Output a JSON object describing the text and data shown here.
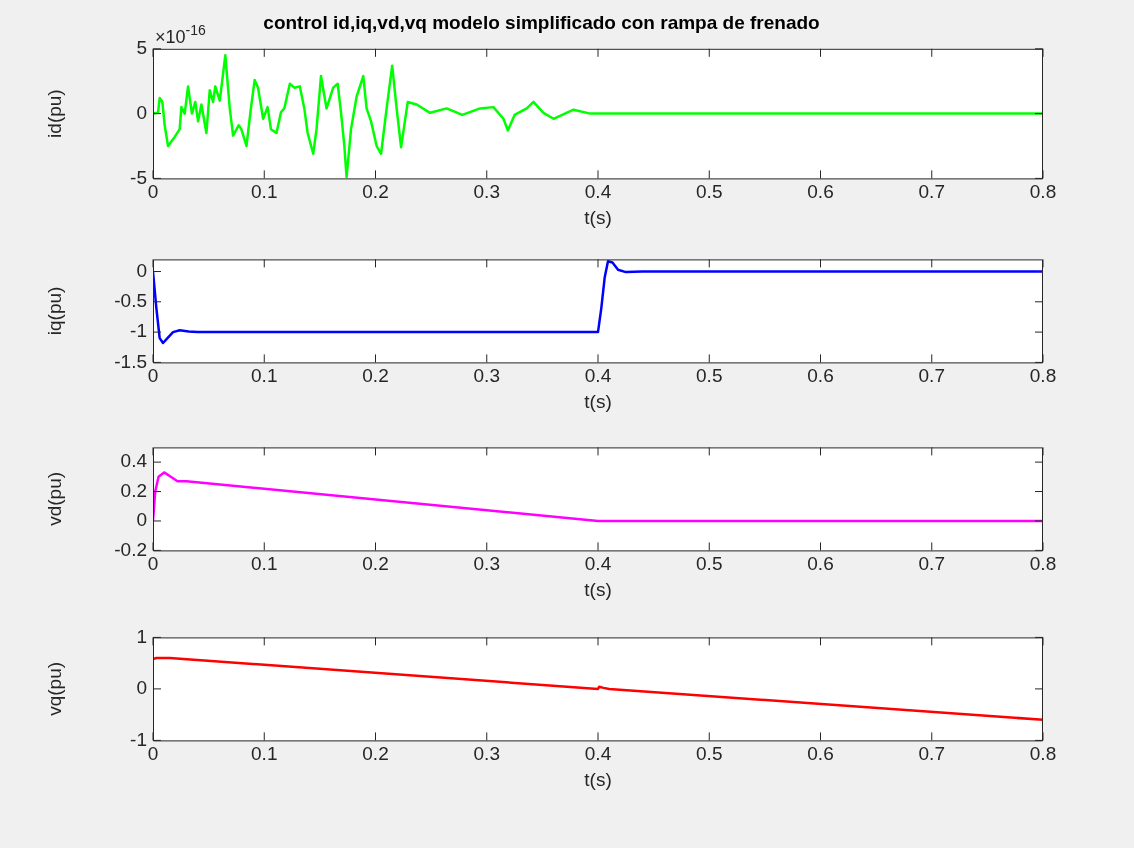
{
  "chart_data": [
    {
      "type": "line",
      "title": "control id,iq,vd,vq modelo simplificado con rampa de frenado",
      "xlabel": "t(s)",
      "ylabel": "id(pu)",
      "annotations": [
        "×10$^{-16}$"
      ],
      "xlim": [
        0,
        0.8
      ],
      "xticks": [
        0,
        0.1,
        0.2,
        0.3,
        0.4,
        0.5,
        0.6,
        0.7,
        0.8
      ],
      "ylim": [
        -5,
        5
      ],
      "yticks": [
        -5,
        0,
        5
      ],
      "grid": false,
      "legend": false,
      "x": [
        0,
        0.0045,
        0.006,
        0.0084,
        0.0105,
        0.0135,
        0.0195,
        0.024,
        0.0255,
        0.0285,
        0.0315,
        0.035,
        0.038,
        0.0405,
        0.0435,
        0.048,
        0.051,
        0.054,
        0.056,
        0.06,
        0.065,
        0.069,
        0.072,
        0.077,
        0.0794,
        0.084,
        0.088,
        0.0914,
        0.0944,
        0.099,
        0.103,
        0.106,
        0.111,
        0.115,
        0.118,
        0.123,
        0.127,
        0.132,
        0.136,
        0.139,
        0.144,
        0.147,
        0.151,
        0.156,
        0.162,
        0.166,
        0.169,
        0.172,
        0.174,
        0.178,
        0.183,
        0.189,
        0.192,
        0.196,
        0.201,
        0.205,
        0.21,
        0.215,
        0.219,
        0.223,
        0.229,
        0.237,
        0.249,
        0.264,
        0.278,
        0.294,
        0.306,
        0.315,
        0.319,
        0.325,
        0.336,
        0.342,
        0.351,
        0.36,
        0.378,
        0.393,
        0.413,
        0.8
      ],
      "series": [
        {
          "color": "#00ff00",
          "values": [
            0,
            0.06,
            1.2,
            0.9,
            -0.9,
            -2.5,
            -1.8,
            -1.2,
            0.5,
            0,
            2.1,
            0,
            0.9,
            -0.6,
            0.7,
            -1.5,
            1.8,
            0.9,
            2.1,
            1.0,
            4.5,
            0.4,
            -1.7,
            -0.9,
            -1.2,
            -2.5,
            0.4,
            2.6,
            2.0,
            -0.4,
            0.5,
            -1.2,
            -1.5,
            0.1,
            0.4,
            2.3,
            2.0,
            2.1,
            0.4,
            -1.5,
            -3.1,
            -1.2,
            2.9,
            0.4,
            2.0,
            2.3,
            0.1,
            -2.5,
            -4.9,
            -1.2,
            1.3,
            2.9,
            0.4,
            -0.6,
            -2.5,
            -3.1,
            0.4,
            3.7,
            0.4,
            -2.6,
            0.9,
            0.7,
            0.06,
            0.4,
            -0.1,
            0.4,
            0.5,
            -0.4,
            -1.3,
            -0.1,
            0.4,
            0.9,
            0.06,
            -0.4,
            0.3,
            0,
            0,
            0
          ]
        }
      ]
    },
    {
      "type": "line",
      "xlabel": "t(s)",
      "ylabel": "iq(pu)",
      "xlim": [
        0,
        0.8
      ],
      "xticks": [
        0,
        0.1,
        0.2,
        0.3,
        0.4,
        0.5,
        0.6,
        0.7,
        0.8
      ],
      "ylim": [
        -1.5,
        0.2
      ],
      "yticks": [
        -1.5,
        -1,
        -0.5,
        0
      ],
      "grid": false,
      "legend": false,
      "x": [
        0,
        0.003,
        0.006,
        0.009,
        0.013,
        0.018,
        0.024,
        0.032,
        0.04,
        0.4,
        0.403,
        0.406,
        0.409,
        0.413,
        0.418,
        0.425,
        0.44,
        0.8
      ],
      "series": [
        {
          "color": "#0000ff",
          "values": [
            0,
            -0.6,
            -1.1,
            -1.18,
            -1.1,
            -1.0,
            -0.97,
            -0.99,
            -1,
            -1,
            -0.6,
            -0.1,
            0.17,
            0.15,
            0.03,
            -0.01,
            0,
            0
          ]
        }
      ]
    },
    {
      "type": "line",
      "xlabel": "t(s)",
      "ylabel": "vd(pu)",
      "xlim": [
        0,
        0.8
      ],
      "xticks": [
        0,
        0.1,
        0.2,
        0.3,
        0.4,
        0.5,
        0.6,
        0.7,
        0.8
      ],
      "ylim": [
        -0.2,
        0.5
      ],
      "yticks": [
        -0.2,
        0,
        0.2,
        0.4
      ],
      "grid": false,
      "legend": false,
      "x": [
        0,
        0.002,
        0.005,
        0.01,
        0.016,
        0.022,
        0.03,
        0.4,
        0.8
      ],
      "series": [
        {
          "color": "#ff00ff",
          "values": [
            0,
            0.2,
            0.3,
            0.33,
            0.3,
            0.27,
            0.27,
            0,
            0
          ]
        }
      ]
    },
    {
      "type": "line",
      "xlabel": "t(s)",
      "ylabel": "vq(pu)",
      "xlim": [
        0,
        0.8
      ],
      "xticks": [
        0,
        0.1,
        0.2,
        0.3,
        0.4,
        0.5,
        0.6,
        0.7,
        0.8
      ],
      "ylim": [
        -1,
        1
      ],
      "yticks": [
        -1,
        0,
        1
      ],
      "grid": false,
      "legend": false,
      "x": [
        0,
        0.003,
        0.015,
        0.4,
        0.401,
        0.405,
        0.41,
        0.8
      ],
      "series": [
        {
          "color": "#ff0000",
          "values": [
            0.58,
            0.6,
            0.6,
            0,
            0.04,
            0.02,
            0,
            -0.6
          ]
        }
      ]
    }
  ]
}
